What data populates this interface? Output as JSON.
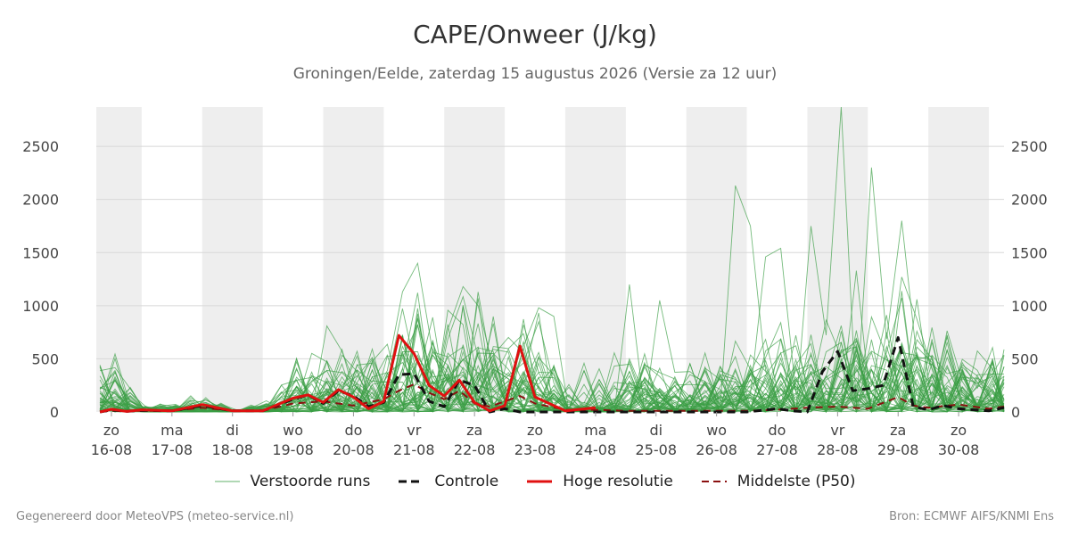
{
  "header": {
    "title": "CAPE/Onweer (J/kg)",
    "subtitle": "Groningen/Eelde, zaterdag 15 augustus 2026 (Versie za 12 uur)"
  },
  "footer": {
    "left": "Gegenereerd door MeteoVPS (meteo-service.nl)",
    "right": "Bron: ECMWF AIFS/KNMI Ens"
  },
  "colors": {
    "ensemble": "#3a9e45",
    "control": "#111111",
    "hires": "#e01010",
    "median": "#8b1010",
    "band": "#eeeeee",
    "grid": "#d8d8d8"
  },
  "chart_data": {
    "type": "line",
    "title": "CAPE/Onweer (J/kg)",
    "ylim": [
      0,
      2870
    ],
    "yticks": [
      0,
      500,
      1000,
      1500,
      2000,
      2500
    ],
    "xlim": [
      -0.25,
      14.75
    ],
    "x_unit": "days since 16-08 (noon)",
    "x_ticks": [
      {
        "day": "zo",
        "date": "16-08"
      },
      {
        "day": "ma",
        "date": "17-08"
      },
      {
        "day": "di",
        "date": "18-08"
      },
      {
        "day": "wo",
        "date": "19-08"
      },
      {
        "day": "do",
        "date": "20-08"
      },
      {
        "day": "vr",
        "date": "21-08"
      },
      {
        "day": "za",
        "date": "22-08"
      },
      {
        "day": "zo",
        "date": "23-08"
      },
      {
        "day": "ma",
        "date": "24-08"
      },
      {
        "day": "di",
        "date": "25-08"
      },
      {
        "day": "wo",
        "date": "26-08"
      },
      {
        "day": "do",
        "date": "27-08"
      },
      {
        "day": "vr",
        "date": "28-08"
      },
      {
        "day": "za",
        "date": "29-08"
      },
      {
        "day": "zo",
        "date": "30-08"
      }
    ],
    "shaded_days": [
      0,
      2,
      4,
      6,
      8,
      10,
      12,
      14
    ],
    "grid": true,
    "legend_position": "bottom",
    "legend": [
      {
        "label": "Verstoorde runs",
        "style": "thin"
      },
      {
        "label": "Controle",
        "style": "dashed"
      },
      {
        "label": "Hoge resolutie",
        "style": "thick"
      },
      {
        "label": "Middelste (P50)",
        "style": "dashed-thin"
      }
    ],
    "series": [
      {
        "name": "Controle",
        "x": [
          -0.19,
          0,
          0.25,
          0.5,
          1,
          1.5,
          2,
          2.5,
          3,
          3.25,
          3.5,
          3.75,
          4,
          4.25,
          4.5,
          4.75,
          5,
          5.25,
          5.5,
          5.75,
          6,
          6.25,
          6.5,
          6.75,
          7,
          7.5,
          8,
          8.5,
          9,
          9.5,
          10,
          10.5,
          11,
          11.25,
          11.5,
          11.75,
          12,
          12.25,
          12.5,
          12.75,
          13,
          13.25,
          13.5,
          13.75,
          14,
          14.5,
          14.75
        ],
        "values": [
          0,
          20,
          5,
          15,
          10,
          60,
          10,
          10,
          120,
          160,
          80,
          200,
          150,
          50,
          90,
          350,
          360,
          100,
          50,
          300,
          250,
          0,
          30,
          0,
          0,
          0,
          0,
          0,
          0,
          0,
          0,
          0,
          30,
          10,
          0,
          380,
          570,
          200,
          220,
          250,
          700,
          50,
          20,
          60,
          30,
          10,
          40
        ]
      },
      {
        "name": "Hoge resolutie",
        "x": [
          -0.19,
          0,
          0.25,
          0.5,
          1,
          1.5,
          2,
          2.5,
          3,
          3.25,
          3.5,
          3.75,
          4,
          4.25,
          4.5,
          4.75,
          5,
          5.25,
          5.5,
          5.75,
          6,
          6.25,
          6.5,
          6.75,
          7,
          7.5,
          8
        ],
        "values": [
          0,
          25,
          5,
          20,
          10,
          70,
          10,
          10,
          130,
          160,
          90,
          210,
          140,
          30,
          100,
          720,
          550,
          250,
          150,
          300,
          90,
          10,
          60,
          620,
          140,
          10,
          40
        ]
      },
      {
        "name": "Middelste (P50)",
        "x": [
          -0.19,
          0,
          0.5,
          1,
          1.5,
          2,
          2.5,
          3,
          3.5,
          4,
          4.5,
          4.75,
          5,
          5.25,
          5.5,
          5.75,
          6,
          6.25,
          6.5,
          6.75,
          7,
          7.5,
          8,
          8.5,
          9,
          9.5,
          10,
          10.5,
          11,
          11.5,
          12,
          12.5,
          13,
          13.25,
          13.5,
          14,
          14.5,
          14.75
        ],
        "values": [
          0,
          10,
          10,
          10,
          40,
          10,
          10,
          80,
          100,
          60,
          120,
          200,
          260,
          180,
          120,
          200,
          80,
          50,
          100,
          150,
          80,
          20,
          20,
          10,
          10,
          10,
          10,
          10,
          20,
          40,
          50,
          30,
          140,
          60,
          40,
          70,
          30,
          50
        ]
      }
    ]
  }
}
